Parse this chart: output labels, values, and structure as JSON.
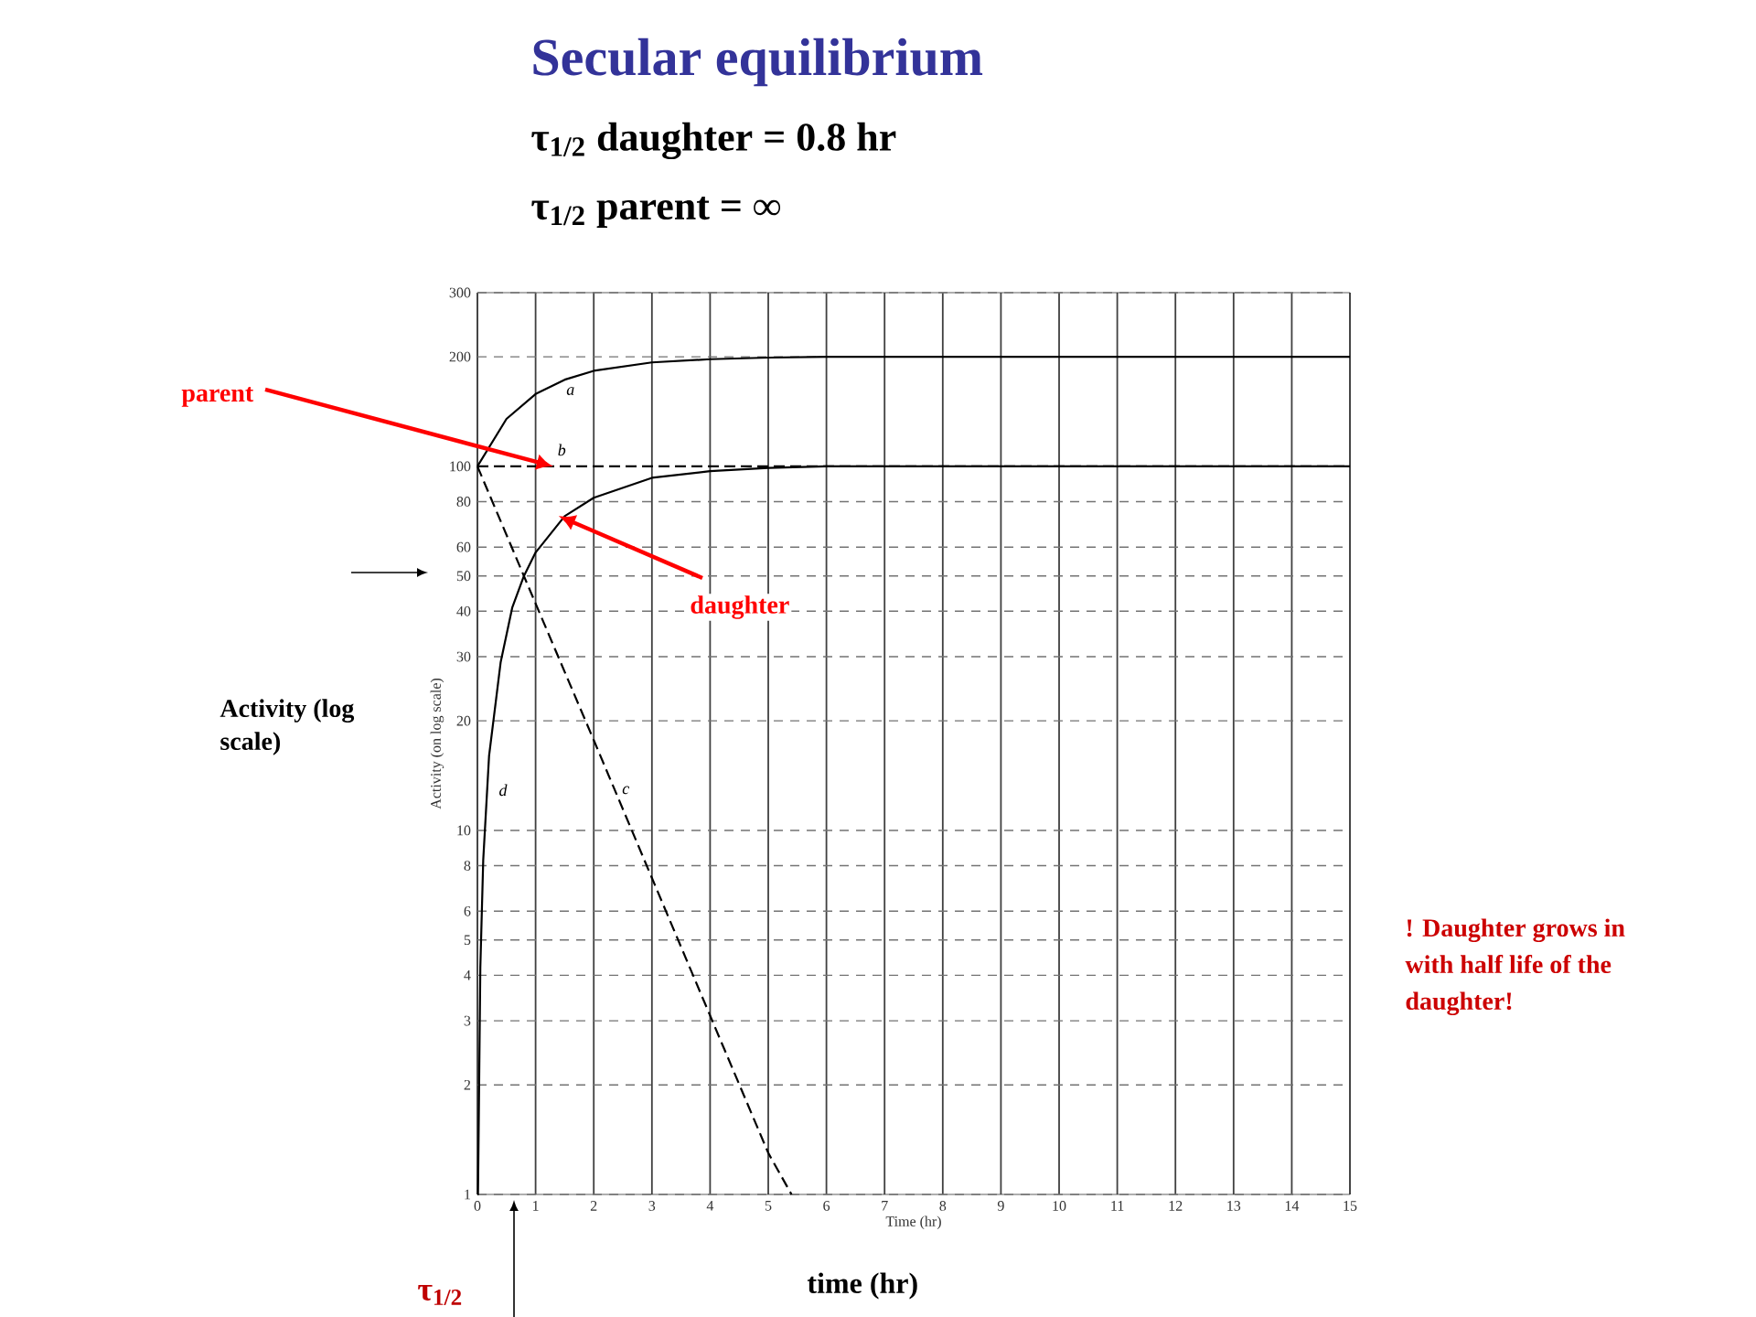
{
  "chart_data": {
    "type": "line",
    "title": "Secular equilibrium",
    "subtitle": "τ$_{1/2}$ daughter = 0.8 hr",
    "xlabel": "Time (hr)",
    "ylabel": "Activity (on log scale)",
    "log": "y",
    "grid": true,
    "xlim": [
      0,
      15
    ],
    "xticks": [
      0,
      1,
      2,
      3,
      4,
      5,
      6,
      7,
      8,
      9,
      10,
      11,
      12,
      13,
      14,
      15
    ],
    "ylim": [
      1,
      300
    ],
    "yticks": [
      1,
      2,
      3,
      4,
      5,
      6,
      8,
      10,
      20,
      30,
      40,
      50,
      60,
      80,
      100,
      200,
      300
    ],
    "series": [
      {
        "color": "#000000",
        "line_style": "solid",
        "x": [
          0,
          0.5,
          1,
          1.5,
          2,
          3,
          4,
          5,
          6,
          15
        ],
        "values": [
          100,
          135,
          158,
          173,
          183,
          193,
          197,
          199,
          200,
          200
        ]
      },
      {
        "color": "#000000",
        "line_style": "dashed",
        "x": [
          0,
          15
        ],
        "values": [
          100,
          100
        ]
      },
      {
        "color": "#000000",
        "line_style": "dashed",
        "x": [
          0,
          1,
          2,
          3,
          4,
          5,
          5.4
        ],
        "values": [
          100,
          42,
          17.7,
          7.4,
          3.1,
          1.3,
          1
        ]
      },
      {
        "color": "#000000",
        "line_style": "solid",
        "x": [
          0,
          0.01,
          0.05,
          0.1,
          0.2,
          0.4,
          0.6,
          0.8,
          1,
          1.5,
          2,
          3,
          4,
          5,
          6,
          15
        ],
        "values": [
          1,
          1,
          4.2,
          8.3,
          16,
          29,
          41,
          50,
          58,
          73,
          82,
          93,
          97,
          99,
          100,
          100
        ]
      }
    ],
    "annotations": [
      "a",
      "b",
      "c",
      "d",
      "τ$_{1/2}$ parent = ∞",
      {
        "text": "parent",
        "x": 1.3,
        "y": 100
      },
      {
        "text": "daughter",
        "x": 1.4,
        "y": 73
      },
      "Activity (log scale)",
      "time (hr)",
      "τ$_{1/2}$",
      "! Daughter grows in with half life of the daughter!"
    ]
  }
}
